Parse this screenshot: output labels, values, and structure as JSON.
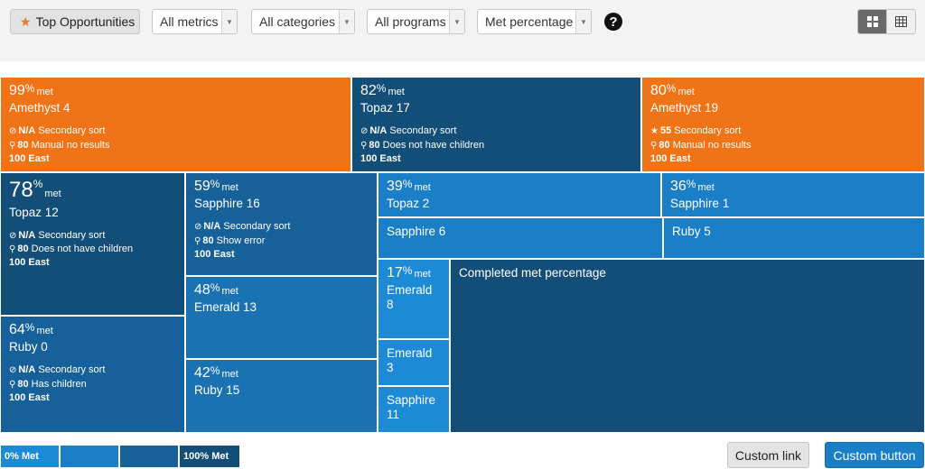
{
  "toolbar": {
    "top_opportunities": {
      "label": "Top Opportunities",
      "icon": "star-icon"
    },
    "filters": [
      {
        "value": "All metrics"
      },
      {
        "value": "All categories"
      },
      {
        "value": "All programs"
      },
      {
        "value": "Met percentage"
      }
    ],
    "help_glyph": "?",
    "view_modes": [
      "grid-view",
      "table-view"
    ],
    "active_view": "grid-view"
  },
  "tiles": [
    {
      "pct": "99",
      "sym": "%",
      "met": "met",
      "name": "Amethyst 4",
      "color": "#f07417",
      "details": [
        {
          "icon": "⊘",
          "value": "N/A",
          "text": " Secondary sort"
        },
        {
          "icon": "⚲",
          "value": "80",
          "text": " Manual no results"
        },
        {
          "icon": "",
          "value": "100 East",
          "text": ""
        }
      ]
    },
    {
      "pct": "82",
      "sym": "%",
      "met": "met",
      "name": "Topaz 17",
      "color": "#134e78",
      "details": [
        {
          "icon": "⊘",
          "value": "N/A",
          "text": " Secondary sort"
        },
        {
          "icon": "⚲",
          "value": "80",
          "text": " Does not have children"
        },
        {
          "icon": "",
          "value": "100 East",
          "text": ""
        }
      ]
    },
    {
      "pct": "80",
      "sym": "%",
      "met": "met",
      "name": "Amethyst 19",
      "color": "#f07417",
      "details": [
        {
          "icon": "★",
          "value": "55",
          "text": " Secondary sort"
        },
        {
          "icon": "⚲",
          "value": "80",
          "text": " Manual no results"
        },
        {
          "icon": "",
          "value": "100 East",
          "text": ""
        }
      ]
    },
    {
      "pct": "78",
      "sym": "%",
      "met": "met",
      "name": "Topaz 12",
      "color": "#134e78",
      "details": [
        {
          "icon": "⊘",
          "value": "N/A",
          "text": " Secondary sort"
        },
        {
          "icon": "⚲",
          "value": "80",
          "text": " Does not have children"
        },
        {
          "icon": "",
          "value": "100 East",
          "text": ""
        }
      ]
    },
    {
      "pct": "64",
      "sym": "%",
      "met": "met",
      "name": "Ruby 0",
      "color": "#17619a",
      "details": [
        {
          "icon": "⊘",
          "value": "N/A",
          "text": " Secondary sort"
        },
        {
          "icon": "⚲",
          "value": "80",
          "text": " Has children"
        },
        {
          "icon": "",
          "value": "100 East",
          "text": ""
        }
      ]
    },
    {
      "pct": "59",
      "sym": "%",
      "met": "met",
      "name": "Sapphire 16",
      "color": "#17619a",
      "details": [
        {
          "icon": "⊘",
          "value": "N/A",
          "text": " Secondary sort"
        },
        {
          "icon": "⚲",
          "value": "80",
          "text": " Show error"
        },
        {
          "icon": "",
          "value": "100 East",
          "text": ""
        }
      ]
    },
    {
      "pct": "48",
      "sym": "%",
      "met": "met",
      "name": "Emerald 13",
      "color": "#1a72b2",
      "details": []
    },
    {
      "pct": "42",
      "sym": "%",
      "met": "met",
      "name": "Ruby 15",
      "color": "#1a72b2",
      "details": []
    },
    {
      "pct": "39",
      "sym": "%",
      "met": "met",
      "name": "Topaz 2",
      "color": "#1a7fc7",
      "details": []
    },
    {
      "pct": "36",
      "sym": "%",
      "met": "met",
      "name": "Sapphire 1",
      "color": "#1a7fc7",
      "details": []
    },
    {
      "pct": "",
      "sym": "",
      "met": "",
      "name": "Sapphire 6",
      "color": "#1a7fc7",
      "details": []
    },
    {
      "pct": "",
      "sym": "",
      "met": "",
      "name": "Ruby 5",
      "color": "#1a7fc7",
      "details": []
    },
    {
      "pct": "17",
      "sym": "%",
      "met": "met",
      "name": "Emerald 8",
      "color": "#1d8ad6",
      "details": []
    },
    {
      "pct": "",
      "sym": "",
      "met": "",
      "name": "Emerald 3",
      "color": "#1d8ad6",
      "details": []
    },
    {
      "pct": "",
      "sym": "",
      "met": "",
      "name": "Sapphire 11",
      "color": "#1d8ad6",
      "details": []
    },
    {
      "pct": "",
      "sym": "",
      "met": "",
      "name": "Completed met percentage",
      "color": "#134e78",
      "details": []
    }
  ],
  "legend": [
    {
      "label": "0% Met",
      "color": "#1d8ad6"
    },
    {
      "label": "",
      "color": "#1a7fc7"
    },
    {
      "label": "",
      "color": "#17619a"
    },
    {
      "label": "100% Met",
      "color": "#134e78"
    }
  ],
  "footer": {
    "custom_link": "Custom link",
    "custom_button": "Custom button"
  }
}
